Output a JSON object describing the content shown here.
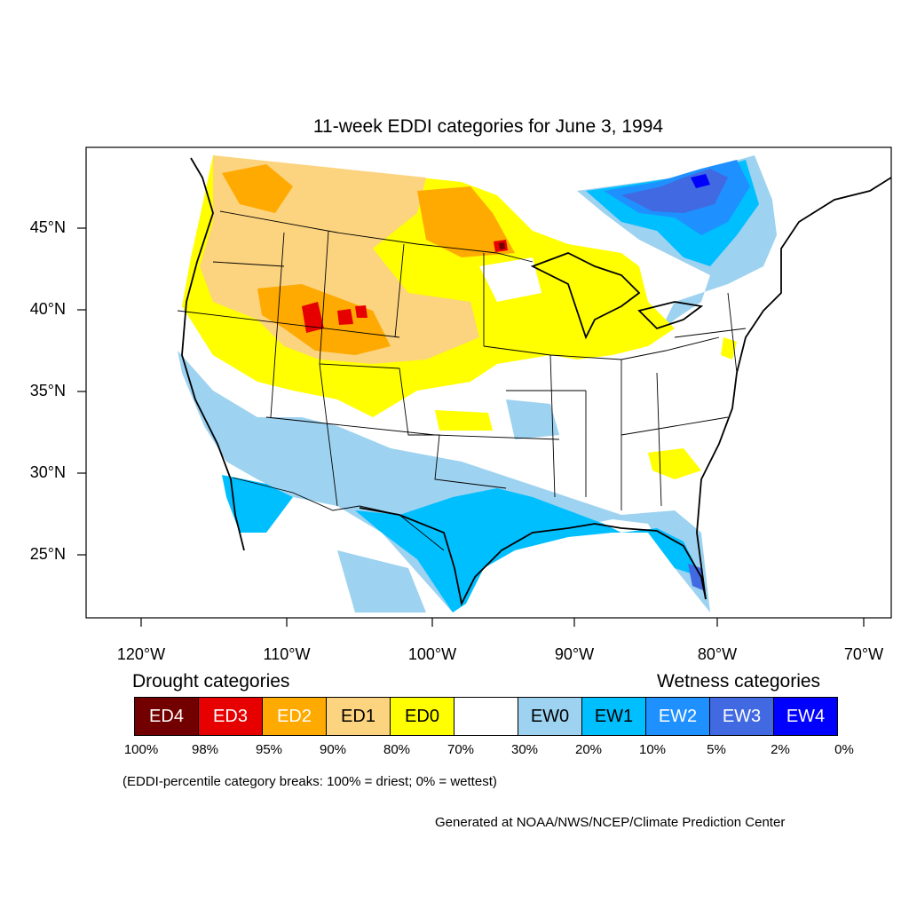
{
  "title": "11-week EDDI categories for June 3, 1994",
  "lat_labels": [
    "45°N",
    "40°N",
    "35°N",
    "30°N",
    "25°N"
  ],
  "lon_labels": [
    "120°W",
    "110°W",
    "100°W",
    "90°W",
    "80°W",
    "70°W"
  ],
  "legend": {
    "drought_heading": "Drought categories",
    "wetness_heading": "Wetness categories",
    "categories": [
      {
        "label": "ED4",
        "color": "#730000",
        "text_color": "#ffffff"
      },
      {
        "label": "ED3",
        "color": "#e60000",
        "text_color": "#ffffff"
      },
      {
        "label": "ED2",
        "color": "#ffaa00",
        "text_color": "#ffffff"
      },
      {
        "label": "ED1",
        "color": "#fcd37f",
        "text_color": "#000000"
      },
      {
        "label": "ED0",
        "color": "#ffff00",
        "text_color": "#000000"
      },
      {
        "label": "",
        "color": "#ffffff",
        "text_color": "#000000"
      },
      {
        "label": "EW0",
        "color": "#9dd2f0",
        "text_color": "#000000"
      },
      {
        "label": "EW1",
        "color": "#00bfff",
        "text_color": "#000000"
      },
      {
        "label": "EW2",
        "color": "#1e90ff",
        "text_color": "#ffffff"
      },
      {
        "label": "EW3",
        "color": "#4169e1",
        "text_color": "#ffffff"
      },
      {
        "label": "EW4",
        "color": "#0000ff",
        "text_color": "#ffffff"
      }
    ],
    "breaks": [
      "100%",
      "98%",
      "95%",
      "90%",
      "80%",
      "70%",
      "30%",
      "20%",
      "10%",
      "5%",
      "2%",
      "0%"
    ]
  },
  "note": "(EDDI-percentile category breaks: 100% = driest; 0% = wettest)",
  "credit": "Generated at NOAA/NWS/NCEP/Climate Prediction Center"
}
